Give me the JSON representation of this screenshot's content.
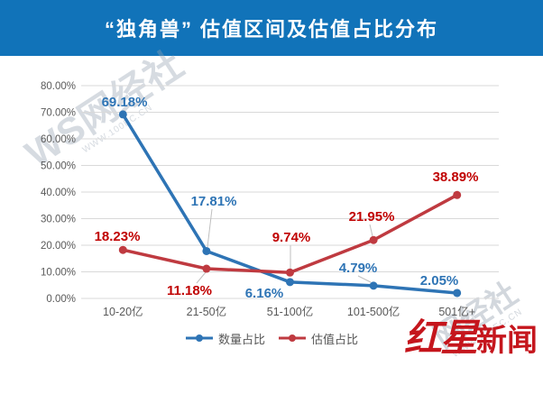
{
  "title": "“独角兽” 估值区间及估值占比分布",
  "colors": {
    "banner_bg": "#1173b9",
    "title_text": "#ffffff",
    "gridline": "#d9d9d9",
    "axis_text": "#595959",
    "leader_line": "#bfbfbf"
  },
  "chart_data": {
    "type": "line",
    "title": "“独角兽” 估值区间及估值占比分布",
    "categories": [
      "10-20亿",
      "21-50亿",
      "51-100亿",
      "101-500亿",
      "501亿+"
    ],
    "series": [
      {
        "name": "数量占比",
        "color": "#2e74b5",
        "label_color": "#2e74b5",
        "values": [
          69.18,
          17.81,
          6.16,
          4.79,
          2.05
        ],
        "labels": [
          "69.18%",
          "17.81%",
          "6.16%",
          "4.79%",
          "2.05%"
        ]
      },
      {
        "name": "估值占比",
        "color": "#bf3a40",
        "label_color": "#c00000",
        "values": [
          18.23,
          11.18,
          9.74,
          21.95,
          38.89
        ],
        "labels": [
          "18.23%",
          "11.18%",
          "9.74%",
          "21.95%",
          "38.89%"
        ]
      }
    ],
    "y_ticks": [
      "0.00%",
      "10.00%",
      "20.00%",
      "30.00%",
      "40.00%",
      "50.00%",
      "60.00%",
      "70.00%",
      "80.00%"
    ],
    "ylim": [
      0,
      80
    ],
    "xlabel": "",
    "ylabel": "",
    "grid": true,
    "legend_position": "bottom"
  },
  "watermarks": {
    "top_left_main": "WS网经社",
    "top_left_sub": "WWW.100EC.CN",
    "bottom_right_main": "网经社",
    "bottom_right_sub": "WWW.100EC.CN"
  },
  "logo": {
    "part1": "红星",
    "part2": "新闻"
  }
}
